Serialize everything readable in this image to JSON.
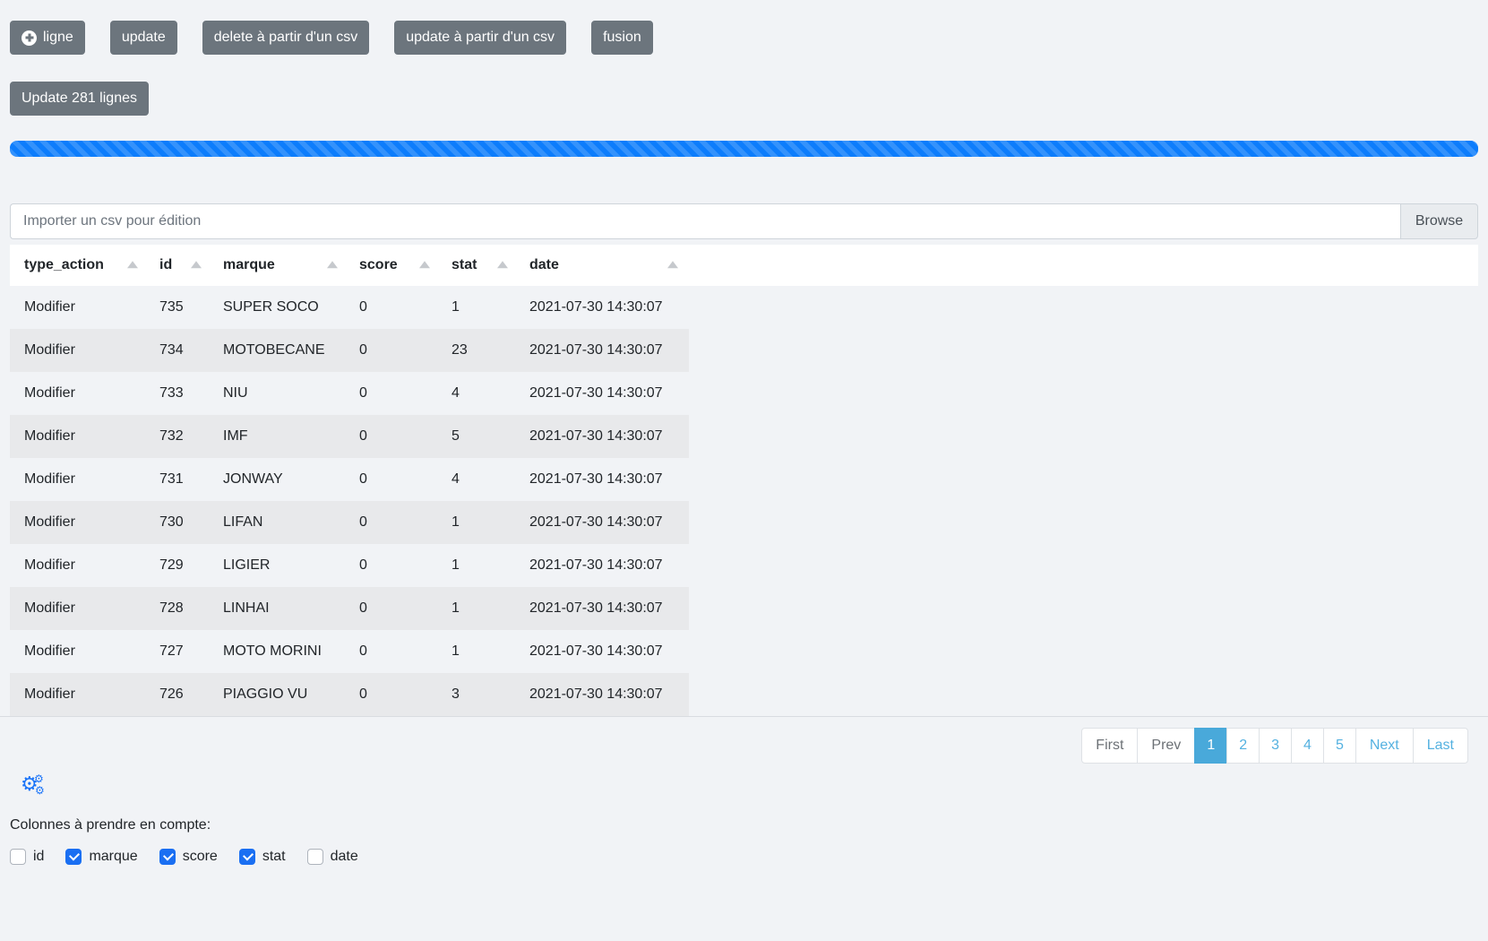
{
  "toolbar": {
    "buttons": [
      {
        "key": "ligne",
        "label": "ligne",
        "icon": "plus-circle-icon"
      },
      {
        "key": "update",
        "label": "update"
      },
      {
        "key": "delete-csv",
        "label": "delete à partir d'un csv"
      },
      {
        "key": "update-csv",
        "label": "update à partir d'un csv"
      },
      {
        "key": "fusion",
        "label": "fusion"
      }
    ],
    "update_lines_label": "Update 281 lignes"
  },
  "progress": {
    "percent": 100,
    "color": "#0d7dfc",
    "striped": true
  },
  "file_input": {
    "placeholder": "Importer un csv pour édition",
    "browse_label": "Browse"
  },
  "table": {
    "columns": [
      {
        "key": "type_action",
        "label": "type_action"
      },
      {
        "key": "id",
        "label": "id"
      },
      {
        "key": "marque",
        "label": "marque"
      },
      {
        "key": "score",
        "label": "score"
      },
      {
        "key": "stat",
        "label": "stat"
      },
      {
        "key": "date",
        "label": "date"
      }
    ],
    "rows": [
      {
        "type_action": "Modifier",
        "id": "735",
        "marque": "SUPER SOCO",
        "score": "0",
        "stat": "1",
        "date": "2021-07-30 14:30:07"
      },
      {
        "type_action": "Modifier",
        "id": "734",
        "marque": "MOTOBECANE",
        "score": "0",
        "stat": "23",
        "date": "2021-07-30 14:30:07"
      },
      {
        "type_action": "Modifier",
        "id": "733",
        "marque": "NIU",
        "score": "0",
        "stat": "4",
        "date": "2021-07-30 14:30:07"
      },
      {
        "type_action": "Modifier",
        "id": "732",
        "marque": "IMF",
        "score": "0",
        "stat": "5",
        "date": "2021-07-30 14:30:07"
      },
      {
        "type_action": "Modifier",
        "id": "731",
        "marque": "JONWAY",
        "score": "0",
        "stat": "4",
        "date": "2021-07-30 14:30:07"
      },
      {
        "type_action": "Modifier",
        "id": "730",
        "marque": "LIFAN",
        "score": "0",
        "stat": "1",
        "date": "2021-07-30 14:30:07"
      },
      {
        "type_action": "Modifier",
        "id": "729",
        "marque": "LIGIER",
        "score": "0",
        "stat": "1",
        "date": "2021-07-30 14:30:07"
      },
      {
        "type_action": "Modifier",
        "id": "728",
        "marque": "LINHAI",
        "score": "0",
        "stat": "1",
        "date": "2021-07-30 14:30:07"
      },
      {
        "type_action": "Modifier",
        "id": "727",
        "marque": "MOTO MORINI",
        "score": "0",
        "stat": "1",
        "date": "2021-07-30 14:30:07"
      },
      {
        "type_action": "Modifier",
        "id": "726",
        "marque": "PIAGGIO VU",
        "score": "0",
        "stat": "3",
        "date": "2021-07-30 14:30:07"
      }
    ]
  },
  "pagination": {
    "items": [
      {
        "label": "First",
        "kind": "muted"
      },
      {
        "label": "Prev",
        "kind": "muted"
      },
      {
        "label": "1",
        "kind": "num",
        "active": true
      },
      {
        "label": "2",
        "kind": "num"
      },
      {
        "label": "3",
        "kind": "num"
      },
      {
        "label": "4",
        "kind": "num"
      },
      {
        "label": "5",
        "kind": "num"
      },
      {
        "label": "Next",
        "kind": "link"
      },
      {
        "label": "Last",
        "kind": "link"
      }
    ],
    "active_color": "#49a9da",
    "link_color": "#54b1e0"
  },
  "settings": {
    "icon": "gears-icon",
    "icon_color": "#1b74f8",
    "label": "Colonnes à prendre en compte:",
    "checkboxes": [
      {
        "label": "id",
        "checked": false
      },
      {
        "label": "marque",
        "checked": true
      },
      {
        "label": "score",
        "checked": true
      },
      {
        "label": "stat",
        "checked": true
      },
      {
        "label": "date",
        "checked": false
      }
    ],
    "checked_color": "#1a6ff2"
  }
}
